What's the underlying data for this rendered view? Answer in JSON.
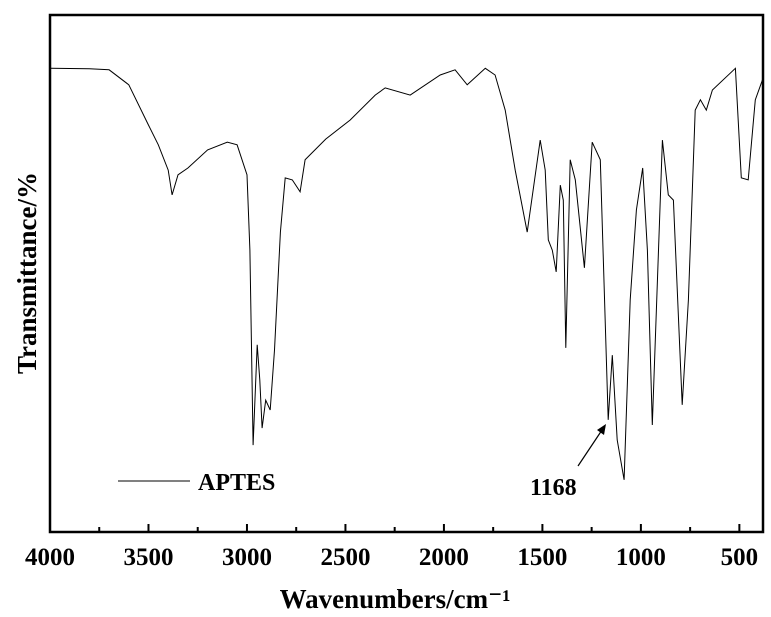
{
  "chart_data": {
    "type": "line",
    "xlabel": "Wavenumbers/cm⁻¹",
    "ylabel": "Transmittance/%",
    "xlim": [
      4000,
      380
    ],
    "ylim": [
      0,
      100
    ],
    "xticks": [
      4000,
      3500,
      3000,
      2500,
      2000,
      1500,
      1000,
      500
    ],
    "xminorticks": [
      3750,
      3250,
      2750,
      2250,
      1750,
      1250,
      750
    ],
    "annotations": [
      {
        "text": "1168"
      }
    ],
    "series": [
      {
        "name": "APTES",
        "color": "#000000",
        "x": [
          4000,
          3800,
          3700,
          3600,
          3500,
          3450,
          3400,
          3380,
          3350,
          3300,
          3200,
          3100,
          3050,
          3000,
          2985,
          2969,
          2948,
          2935,
          2923,
          2905,
          2882,
          2860,
          2830,
          2806,
          2770,
          2730,
          2705,
          2600,
          2476,
          2349,
          2298,
          2171,
          2019,
          1943,
          1882,
          1790,
          1740,
          1689,
          1638,
          1577,
          1511,
          1486,
          1470,
          1450,
          1430,
          1409,
          1394,
          1381,
          1359,
          1333,
          1287,
          1247,
          1206,
          1166,
          1145,
          1120,
          1085,
          1054,
          1023,
          991,
          967,
          942,
          891,
          861,
          835,
          790,
          759,
          724,
          698,
          668,
          637,
          520,
          490,
          455,
          419,
          383
        ],
        "values": [
          89.7,
          89.6,
          89.4,
          86.5,
          78.7,
          74.9,
          70.0,
          65.2,
          69.1,
          70.4,
          73.9,
          75.4,
          74.9,
          69.1,
          54.5,
          16.8,
          36.2,
          29.4,
          20.1,
          25.5,
          23.6,
          35.2,
          58.0,
          68.5,
          68.1,
          65.8,
          72.0,
          76.0,
          79.7,
          84.5,
          85.9,
          84.5,
          88.4,
          89.4,
          86.5,
          89.7,
          88.4,
          81.6,
          70.0,
          58.0,
          75.8,
          70.0,
          56.5,
          54.5,
          50.3,
          67.1,
          64.2,
          35.6,
          72.0,
          68.1,
          51.1,
          75.4,
          72.0,
          21.7,
          34.2,
          17.8,
          10.1,
          44.9,
          62.3,
          70.4,
          54.5,
          20.7,
          75.8,
          65.2,
          64.2,
          24.6,
          44.9,
          81.6,
          83.6,
          81.6,
          85.5,
          89.7,
          68.5,
          68.1,
          83.6,
          87.4
        ]
      }
    ]
  }
}
